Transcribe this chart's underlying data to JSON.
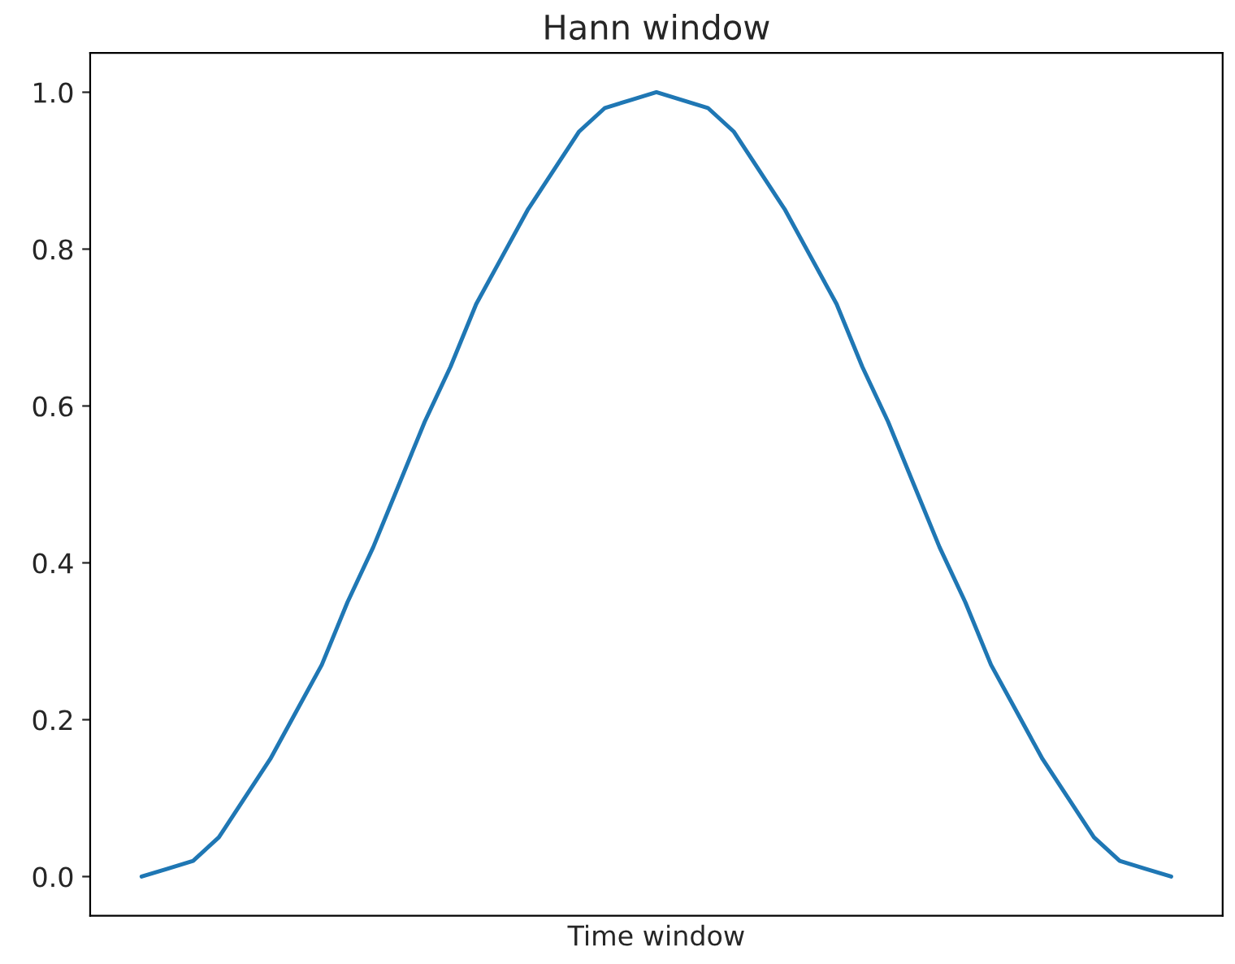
{
  "chart_data": {
    "type": "line",
    "title": "Hann window",
    "xlabel": "Time window",
    "categories": [
      null,
      null,
      null,
      null,
      null,
      null,
      null,
      null,
      null,
      null,
      null,
      null,
      null,
      null,
      null,
      null,
      null,
      null,
      null,
      null,
      null,
      null,
      null,
      null,
      null,
      null,
      null,
      null,
      null,
      null,
      null,
      null,
      null,
      null,
      null,
      null,
      null,
      null,
      null,
      null,
      null
    ],
    "series": [
      {
        "color": "#1f77b4",
        "values": [
          0,
          0.01,
          0.02,
          0.05,
          0.1,
          0.15,
          0.21,
          0.27,
          0.35,
          0.42,
          0.5,
          0.58,
          0.65,
          0.73,
          0.79,
          0.85,
          0.9,
          0.95,
          0.98,
          0.99,
          1,
          0.99,
          0.98,
          0.95,
          0.9,
          0.85,
          0.79,
          0.73,
          0.65,
          0.58,
          0.5,
          0.42,
          0.35,
          0.27,
          0.21,
          0.15,
          0.1,
          0.05,
          0.02,
          0.01,
          0
        ]
      }
    ],
    "ylim": [
      -0.05,
      1.05
    ],
    "yticks": [
      {
        "value": 0,
        "label": "0.0"
      },
      {
        "value": 0.2,
        "label": "0.2"
      },
      {
        "value": 0.4,
        "label": "0.4"
      },
      {
        "value": 0.6,
        "label": "0.6"
      },
      {
        "value": 0.8,
        "label": "0.8"
      },
      {
        "value": 1,
        "label": "1.0"
      }
    ],
    "tick_labels": "y",
    "grid": false,
    "legend": false,
    "marker": "none",
    "line_style": "solid"
  }
}
